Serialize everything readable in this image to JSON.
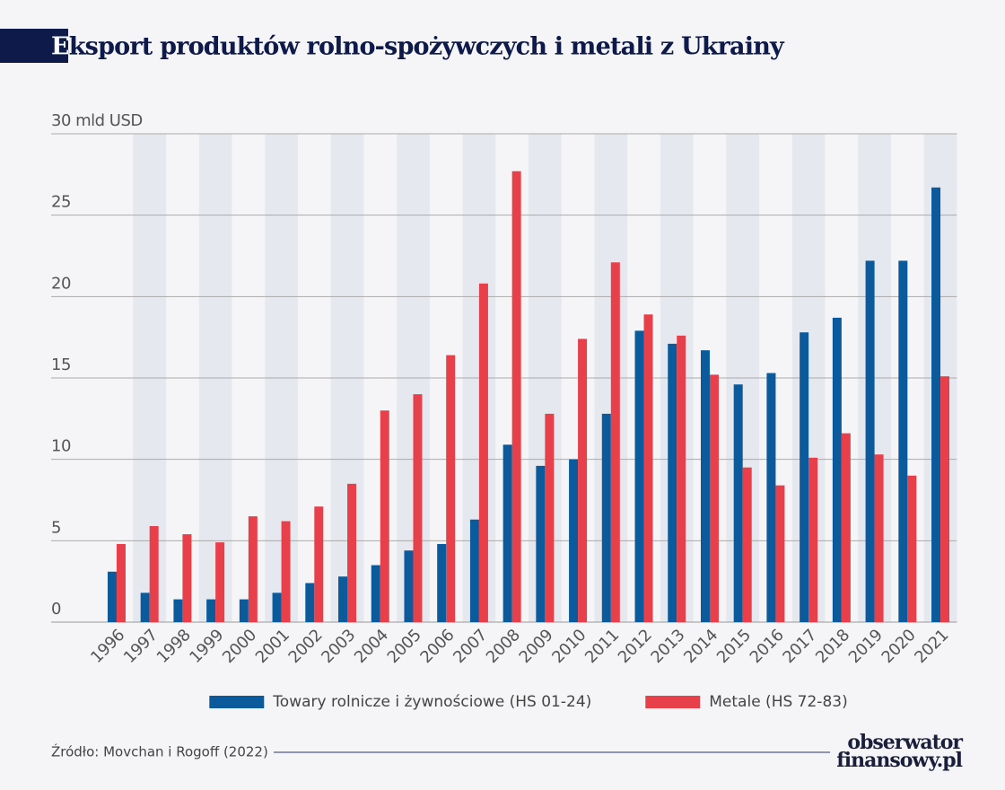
{
  "chart_data": {
    "type": "bar",
    "title": "Eksport produktów rolno-spożywczych i metali z Ukrainy",
    "categories": [
      "1996",
      "1997",
      "1998",
      "1999",
      "2000",
      "2001",
      "2002",
      "2003",
      "2004",
      "2005",
      "2006",
      "2007",
      "2008",
      "2009",
      "2010",
      "2011",
      "2012",
      "2013",
      "2014",
      "2015",
      "2016",
      "2017",
      "2018",
      "2019",
      "2020",
      "2021"
    ],
    "series": [
      {
        "name": "Towary rolnicze i żywnościowe (HS 01-24)",
        "color": "#0a5a9c",
        "values": [
          3.1,
          1.8,
          1.4,
          1.4,
          1.4,
          1.8,
          2.4,
          2.8,
          3.5,
          4.4,
          4.8,
          6.3,
          10.9,
          9.6,
          10.0,
          12.8,
          17.9,
          17.1,
          16.7,
          14.6,
          15.3,
          17.8,
          18.7,
          22.2,
          22.2,
          26.7
        ]
      },
      {
        "name": "Metale (HS 72-83)",
        "color": "#e8404a",
        "values": [
          4.8,
          5.9,
          5.4,
          4.9,
          6.5,
          6.2,
          7.1,
          8.5,
          13.0,
          14.0,
          16.4,
          20.8,
          27.7,
          12.8,
          17.4,
          22.1,
          18.9,
          17.6,
          15.2,
          9.5,
          8.4,
          10.1,
          11.6,
          10.3,
          9.0,
          15.1
        ]
      }
    ],
    "ylim": [
      0,
      30
    ],
    "yticks": [
      0,
      5,
      10,
      15,
      20,
      25,
      {
        "value": 30,
        "label": "30 mld USD"
      }
    ],
    "grid": true,
    "legend": "bottom",
    "source": "Źródło: Movchan i Rogoff (2022)"
  },
  "logo": [
    "obserwator",
    "finansowy.pl"
  ]
}
